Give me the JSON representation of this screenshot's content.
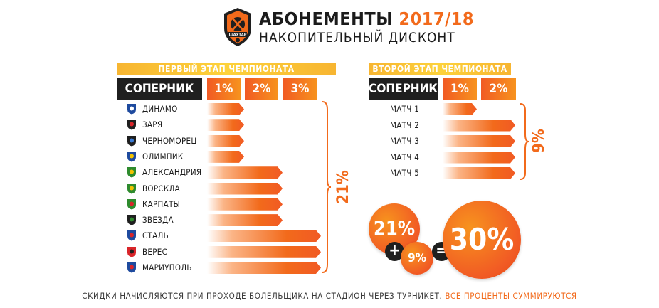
{
  "header": {
    "title": "АБОНЕМЕНТЫ",
    "year": "2017/18",
    "subtitle": "НАКОПИТЕЛЬНЫЙ ДИСКОНТ",
    "logo_text": "ШАХТАР"
  },
  "left_table": {
    "banner": "ПЕРВЫЙ ЭТАП ЧЕМПИОНАТА",
    "col_header": "СОПЕРНИК",
    "levels": [
      "1%",
      "2%",
      "3%"
    ],
    "rows": [
      {
        "team": "ДИНАМО",
        "level": 1
      },
      {
        "team": "ЗАРЯ",
        "level": 1
      },
      {
        "team": "ЧЕРНОМОРЕЦ",
        "level": 1
      },
      {
        "team": "ОЛИМПИК",
        "level": 1
      },
      {
        "team": "АЛЕКСАНДРИЯ",
        "level": 2
      },
      {
        "team": "ВОРСКЛА",
        "level": 2
      },
      {
        "team": "КАРПАТЫ",
        "level": 2
      },
      {
        "team": "ЗВЕЗДА",
        "level": 2
      },
      {
        "team": "СТАЛЬ",
        "level": 3
      },
      {
        "team": "ВЕРЕС",
        "level": 3
      },
      {
        "team": "МАРИУПОЛЬ",
        "level": 3
      }
    ],
    "total": "21%"
  },
  "right_table": {
    "banner": "ВТОРОЙ ЭТАП ЧЕМПИОНАТА",
    "col_header": "СОПЕРНИК",
    "levels": [
      "1%",
      "2%"
    ],
    "rows": [
      {
        "match": "МАТЧ 1",
        "level": 1
      },
      {
        "match": "МАТЧ 2",
        "level": 2
      },
      {
        "match": "МАТЧ 3",
        "level": 2
      },
      {
        "match": "МАТЧ 4",
        "level": 2
      },
      {
        "match": "МАТЧ 5",
        "level": 2
      }
    ],
    "total": "9%"
  },
  "sum": {
    "a": "21%",
    "plus": "+",
    "b": "9%",
    "equals": "=",
    "result": "30%"
  },
  "footer": {
    "text": "СКИДКИ НАЧИСЛЯЮТСЯ ПРИ ПРОХОДЕ БОЛЕЛЬЩИКА НА СТАДИОН ЧЕРЕЗ ТУРНИКЕТ.",
    "highlight": "ВСЕ ПРОЦЕНТЫ СУММИРУЮТСЯ"
  },
  "colors": {
    "accent": "#f26a1b",
    "dark": "#1f1f1f",
    "banner": "#fdd23b"
  },
  "icons": [
    "dynamo-crest-icon",
    "zorya-crest-icon",
    "chornomorets-crest-icon",
    "olimpik-crest-icon",
    "oleksandriya-crest-icon",
    "vorskla-crest-icon",
    "karpaty-crest-icon",
    "zirka-crest-icon",
    "stal-crest-icon",
    "veres-crest-icon",
    "mariupol-crest-icon"
  ]
}
